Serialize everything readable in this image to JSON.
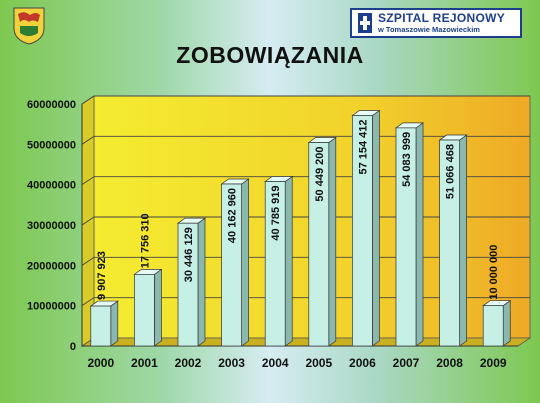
{
  "header": {
    "hospital_name": "SZPITAL REJONOWY",
    "hospital_location": "w Tomaszowie Mazowieckim",
    "crest_icon": "coat-of-arms-icon",
    "logo_icon": "hospital-logo-icon"
  },
  "colors": {
    "plot_yellow": "#f4e830",
    "plot_orange": "#f0b528",
    "bar_face": "#c6efe6",
    "bar_side": "#8ab8ae",
    "logo_blue": "#1b3f8c"
  },
  "chart_data": {
    "type": "bar",
    "title": "ZOBOWIĄZANIA",
    "categories": [
      "2000",
      "2001",
      "2002",
      "2003",
      "2004",
      "2005",
      "2006",
      "2007",
      "2008",
      "2009"
    ],
    "values": [
      9907923,
      17756310,
      30446129,
      40162960,
      40785919,
      50449200,
      57154412,
      54083999,
      51066468,
      10000000
    ],
    "value_labels": [
      "9 907 923",
      "17 756 310",
      "30 446 129",
      "40 162 960",
      "40 785 919",
      "50 449 200",
      "57 154 412",
      "54 083 999",
      "51 066 468",
      "10 000 000"
    ],
    "y_ticks": [
      "0",
      "10000000",
      "20000000",
      "30000000",
      "40000000",
      "50000000",
      "60000000"
    ],
    "ylim": [
      0,
      60000000
    ],
    "grid": true,
    "legend": "none"
  }
}
